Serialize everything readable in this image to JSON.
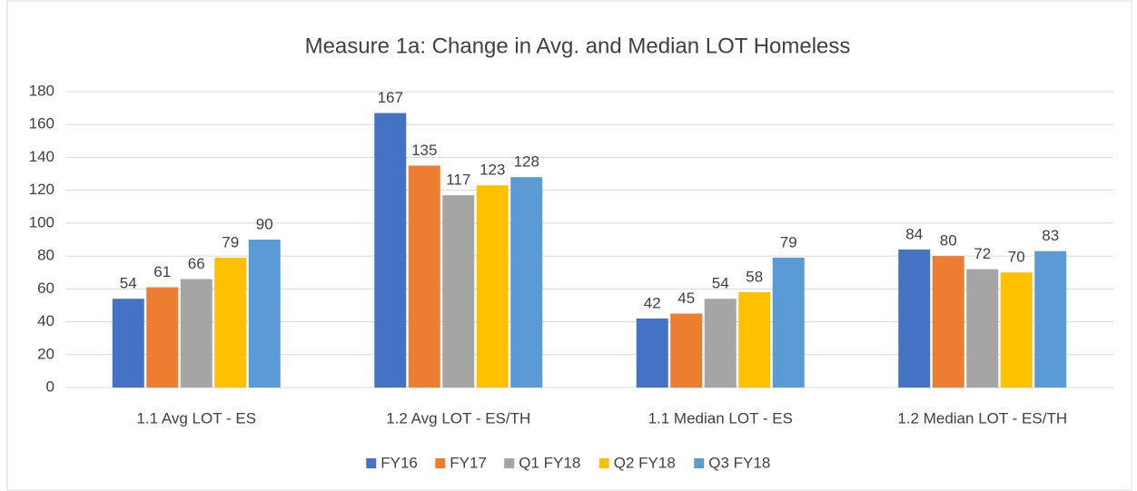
{
  "chart_data": {
    "type": "bar",
    "title": "Measure 1a: Change in Avg. and Median LOT Homeless",
    "categories": [
      "1.1 Avg LOT - ES",
      "1.2 Avg LOT - ES/TH",
      "1.1 Median LOT - ES",
      "1.2 Median LOT - ES/TH"
    ],
    "series": [
      {
        "name": "FY16",
        "color": "#4472c4",
        "values": [
          54,
          167,
          42,
          84
        ]
      },
      {
        "name": "FY17",
        "color": "#ed7d31",
        "values": [
          61,
          135,
          45,
          80
        ]
      },
      {
        "name": "Q1 FY18",
        "color": "#a5a5a5",
        "values": [
          66,
          117,
          54,
          72
        ]
      },
      {
        "name": "Q2 FY18",
        "color": "#ffc000",
        "values": [
          79,
          123,
          58,
          70
        ]
      },
      {
        "name": "Q3 FY18",
        "color": "#5b9bd5",
        "values": [
          90,
          128,
          79,
          83
        ]
      }
    ],
    "ylim": [
      0,
      180
    ],
    "yticks": [
      0,
      20,
      40,
      60,
      80,
      100,
      120,
      140,
      160,
      180
    ],
    "grid": true,
    "legend": "bottom"
  }
}
